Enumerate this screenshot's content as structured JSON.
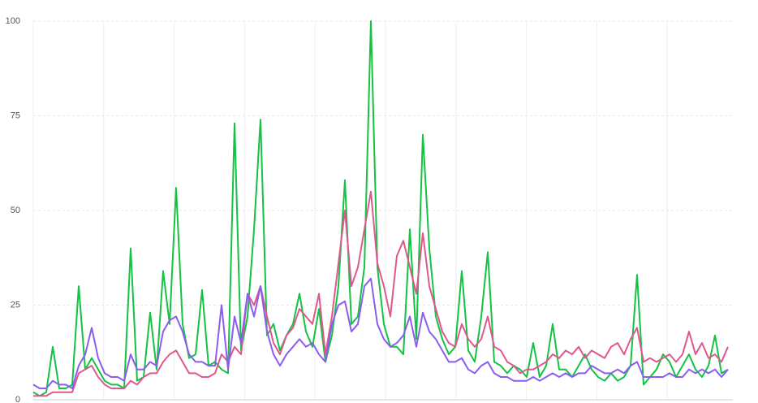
{
  "chart_data": {
    "type": "line",
    "ylim": [
      0,
      100
    ],
    "yticks": [
      0,
      25,
      50,
      75,
      100
    ],
    "grid": true,
    "series": [
      {
        "color": "#14c244",
        "values": [
          2,
          1,
          2,
          14,
          3,
          3,
          4,
          30,
          8,
          11,
          8,
          5,
          4,
          4,
          3,
          40,
          5,
          6,
          23,
          8,
          34,
          20,
          56,
          20,
          11,
          12,
          29,
          9,
          10,
          8,
          7,
          73,
          13,
          22,
          45,
          74,
          17,
          20,
          13,
          17,
          20,
          28,
          18,
          14,
          24,
          10,
          17,
          30,
          58,
          20,
          22,
          35,
          100,
          35,
          20,
          14,
          14,
          12,
          45,
          16,
          70,
          40,
          22,
          16,
          12,
          14,
          34,
          13,
          10,
          22,
          39,
          10,
          9,
          7,
          9,
          8,
          6,
          15,
          6,
          9,
          20,
          8,
          8,
          6,
          9,
          12,
          8,
          6,
          5,
          7,
          5,
          6,
          9,
          33,
          4,
          6,
          8,
          12,
          10,
          6,
          9,
          12,
          8,
          6,
          9,
          17,
          7,
          8
        ]
      },
      {
        "color": "#e0578d",
        "values": [
          1,
          1,
          1,
          2,
          2,
          2,
          2,
          7,
          8,
          9,
          6,
          4,
          3,
          3,
          3,
          5,
          4,
          6,
          7,
          7,
          10,
          12,
          13,
          10,
          7,
          7,
          6,
          6,
          7,
          12,
          10,
          14,
          12,
          28,
          25,
          30,
          22,
          15,
          12,
          17,
          19,
          24,
          22,
          20,
          28,
          12,
          22,
          36,
          50,
          30,
          35,
          45,
          55,
          36,
          30,
          22,
          38,
          42,
          35,
          28,
          44,
          30,
          24,
          18,
          15,
          14,
          20,
          16,
          14,
          16,
          22,
          14,
          13,
          10,
          9,
          7,
          8,
          8,
          9,
          10,
          12,
          11,
          13,
          12,
          14,
          11,
          13,
          12,
          11,
          14,
          15,
          12,
          16,
          19,
          10,
          11,
          10,
          11,
          12,
          10,
          12,
          18,
          12,
          15,
          11,
          12,
          10,
          14
        ]
      },
      {
        "color": "#8b5cf0",
        "values": [
          4,
          3,
          3,
          5,
          4,
          4,
          3,
          9,
          12,
          19,
          11,
          7,
          6,
          6,
          5,
          12,
          8,
          8,
          10,
          9,
          18,
          21,
          22,
          18,
          12,
          10,
          10,
          9,
          9,
          25,
          8,
          22,
          15,
          28,
          22,
          30,
          18,
          12,
          9,
          12,
          14,
          16,
          14,
          15,
          12,
          10,
          20,
          25,
          26,
          18,
          20,
          30,
          32,
          20,
          16,
          14,
          15,
          17,
          22,
          14,
          23,
          18,
          16,
          13,
          10,
          10,
          11,
          8,
          7,
          9,
          10,
          7,
          6,
          6,
          5,
          5,
          5,
          6,
          5,
          6,
          7,
          6,
          7,
          6,
          7,
          7,
          9,
          8,
          7,
          7,
          8,
          7,
          9,
          10,
          6,
          6,
          6,
          6,
          7,
          6,
          6,
          8,
          7,
          8,
          7,
          8,
          6,
          8
        ]
      }
    ]
  }
}
